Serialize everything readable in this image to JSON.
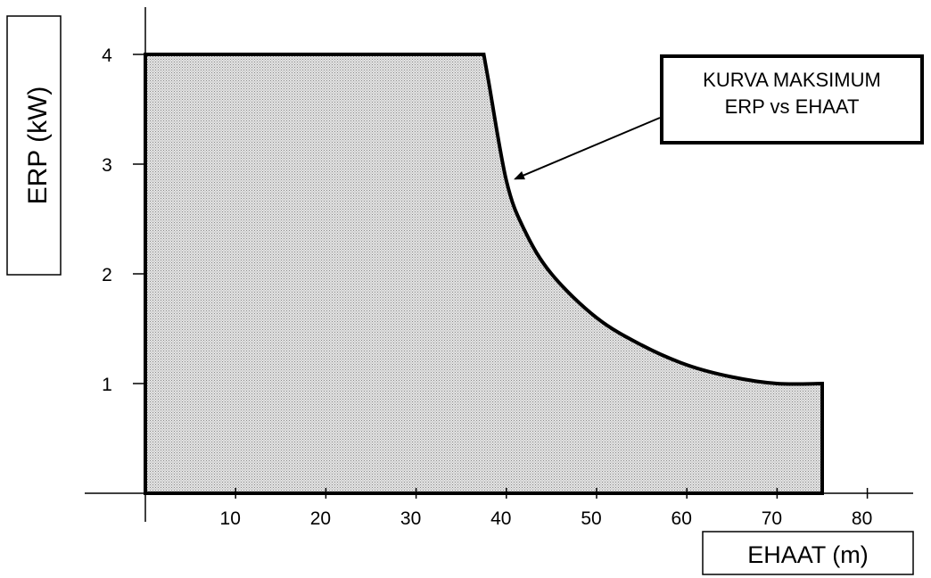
{
  "chart_data": {
    "type": "area",
    "title": "",
    "xlabel": "EHAAT (m)",
    "ylabel": "ERP (kW)",
    "xlim": [
      0,
      85
    ],
    "ylim": [
      0,
      4.5
    ],
    "x_ticks": [
      10,
      20,
      30,
      40,
      50,
      60,
      70,
      80
    ],
    "y_ticks": [
      1,
      2,
      3,
      4
    ],
    "grid": false,
    "legend": "none",
    "fill_pattern": "dotted-gray",
    "series": [
      {
        "x": [
          0,
          0,
          37.5,
          38,
          40,
          42,
          45,
          50,
          55,
          60,
          65,
          70,
          75,
          75
        ],
        "values": [
          0,
          4,
          4,
          3.77,
          2.85,
          2.4,
          2.0,
          1.6,
          1.35,
          1.17,
          1.06,
          1.0,
          1.0,
          0
        ]
      }
    ],
    "annotation": {
      "lines": [
        "KURVA MAKSIMUM",
        "ERP vs EHAAT"
      ],
      "points_to": {
        "x": 40.6,
        "y": 2.85
      }
    }
  }
}
